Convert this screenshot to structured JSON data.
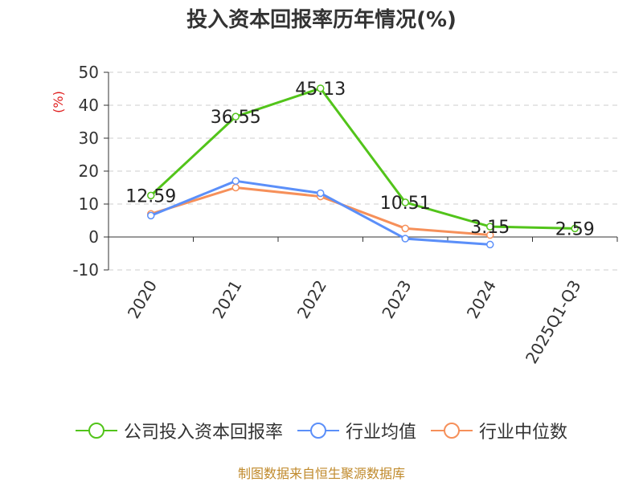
{
  "chart_data": {
    "type": "line",
    "title": "投入资本回报率历年情况(%)",
    "ylabel": "(%)",
    "xlabel": "",
    "categories": [
      "2020",
      "2021",
      "2022",
      "2023",
      "2024",
      "2025Q1-Q3"
    ],
    "ylim": [
      -10,
      50
    ],
    "yticks": [
      -10,
      0,
      10,
      20,
      30,
      40,
      50
    ],
    "grid": true,
    "legend_position": "bottom",
    "series": [
      {
        "name": "公司投入资本回报率",
        "color": "#52c41a",
        "values": [
          12.59,
          36.55,
          45.13,
          10.51,
          3.15,
          2.59
        ],
        "labels": [
          "12.59",
          "36.55",
          "45.13",
          "10.51",
          "3.15",
          "2.59"
        ]
      },
      {
        "name": "行业均值",
        "color": "#5b8ff9",
        "values": [
          6.5,
          17.0,
          13.3,
          -0.5,
          -2.3,
          null
        ]
      },
      {
        "name": "行业中位数",
        "color": "#f6905a",
        "values": [
          7.0,
          15.0,
          12.3,
          2.6,
          0.6,
          null
        ]
      }
    ]
  },
  "source": "制图数据来自恒生聚源数据库"
}
